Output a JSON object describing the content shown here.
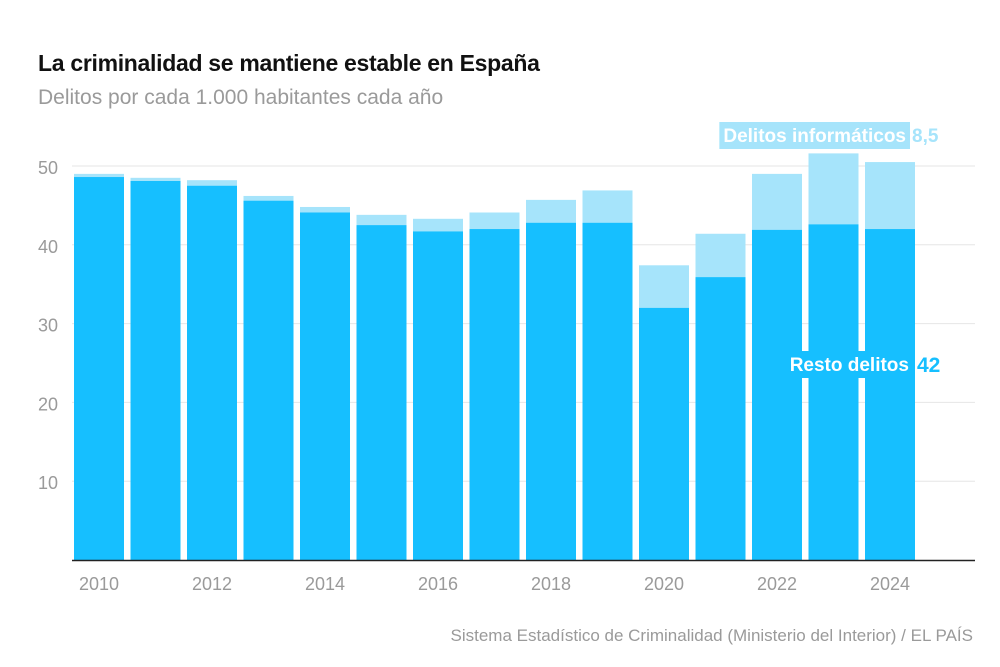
{
  "title": "La criminalidad se mantiene estable en España",
  "subtitle": "Delitos por cada 1.000 habitantes cada año",
  "source": "Sistema Estadístico de Criminalidad (Ministerio del Interior) / EL PAÍS",
  "colors": {
    "resto": "#16bfff",
    "informaticos": "#a6e4fb",
    "grid": "#e6e6e6",
    "axis": "#222222",
    "tick_text": "#9a9a9a",
    "resto_label_bg": "#16bfff",
    "informaticos_label_bg": "#a6e4fb"
  },
  "chart_data": {
    "type": "bar",
    "stacked": true,
    "title": "La criminalidad se mantiene estable en España",
    "subtitle": "Delitos por cada 1.000 habitantes cada año",
    "categories": [
      "2010",
      "2011",
      "2012",
      "2013",
      "2014",
      "2015",
      "2016",
      "2017",
      "2018",
      "2019",
      "2020",
      "2021",
      "2022",
      "2023",
      "2024"
    ],
    "x_tick_labels": [
      "2010",
      "2012",
      "2014",
      "2016",
      "2018",
      "2020",
      "2022",
      "2024"
    ],
    "y_ticks": [
      10,
      20,
      30,
      40,
      50
    ],
    "ylim": [
      0,
      50
    ],
    "grid": true,
    "series": [
      {
        "name": "Resto delitos",
        "values": [
          48.6,
          48.1,
          47.5,
          45.6,
          44.1,
          42.5,
          41.7,
          42.0,
          42.8,
          42.8,
          32.0,
          35.9,
          41.9,
          42.6,
          42.0
        ]
      },
      {
        "name": "Delitos informáticos",
        "values": [
          0.4,
          0.4,
          0.7,
          0.6,
          0.7,
          1.3,
          1.6,
          2.1,
          2.9,
          4.1,
          5.4,
          5.5,
          7.1,
          9.0,
          8.5
        ]
      }
    ],
    "annotations": [
      {
        "series": "Delitos informáticos",
        "label": "Delitos informáticos",
        "value_label": "8,5"
      },
      {
        "series": "Resto delitos",
        "label": "Resto delitos",
        "value_label": "42"
      }
    ]
  }
}
